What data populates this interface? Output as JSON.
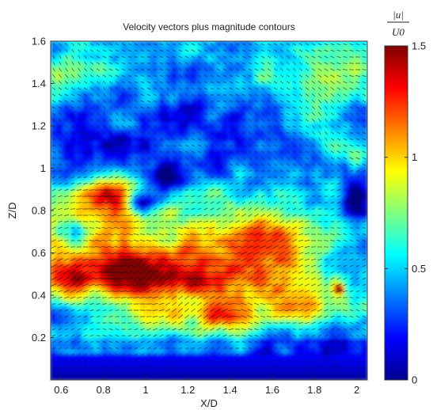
{
  "chart_data": {
    "type": "heatmap",
    "title": "Velocity vectors plus magnitude contours",
    "xlabel": "X/D",
    "ylabel": "Z/D",
    "xlim": [
      0.55,
      2.05
    ],
    "ylim": [
      0.0,
      1.6
    ],
    "x_ticks": [
      "0.6",
      "0.8",
      "1",
      "1.2",
      "1.4",
      "1.6",
      "1.8",
      "2"
    ],
    "y_ticks": [
      "0.2",
      "0.4",
      "0.6",
      "0.8",
      "1",
      "1.2",
      "1.4",
      "1.6"
    ],
    "colorbar": {
      "label_numerator": "|u|",
      "label_denominator": "U0",
      "range": [
        0,
        1.5
      ],
      "ticks": [
        "0",
        "0.5",
        "1",
        "1.5"
      ],
      "colormap": "jet"
    },
    "overlay": "velocity vectors",
    "magnitude_features": [
      {
        "region": "jet core",
        "x": [
          0.55,
          1.35
        ],
        "z": [
          0.42,
          0.62
        ],
        "value": 1.3
      },
      {
        "region": "upper lobe",
        "x": [
          0.7,
          0.95
        ],
        "z": [
          0.8,
          0.95
        ],
        "value": 1.3
      },
      {
        "region": "shear layer",
        "x": [
          0.55,
          1.9
        ],
        "z": [
          0.3,
          0.9
        ],
        "value": 0.9
      },
      {
        "region": "lower yellow band",
        "x": [
          1.4,
          2.0
        ],
        "z": [
          0.25,
          0.35
        ],
        "value": 0.9
      },
      {
        "region": "hot spot",
        "x": [
          1.9,
          1.93
        ],
        "z": [
          0.41,
          0.44
        ],
        "value": 1.5
      },
      {
        "region": "upper quiescent field",
        "x": [
          0.55,
          2.05
        ],
        "z": [
          1.05,
          1.6
        ],
        "value": 0.25
      },
      {
        "region": "bottom wall layer",
        "x": [
          0.55,
          2.05
        ],
        "z": [
          0.0,
          0.12
        ],
        "value": 0.1
      }
    ]
  }
}
